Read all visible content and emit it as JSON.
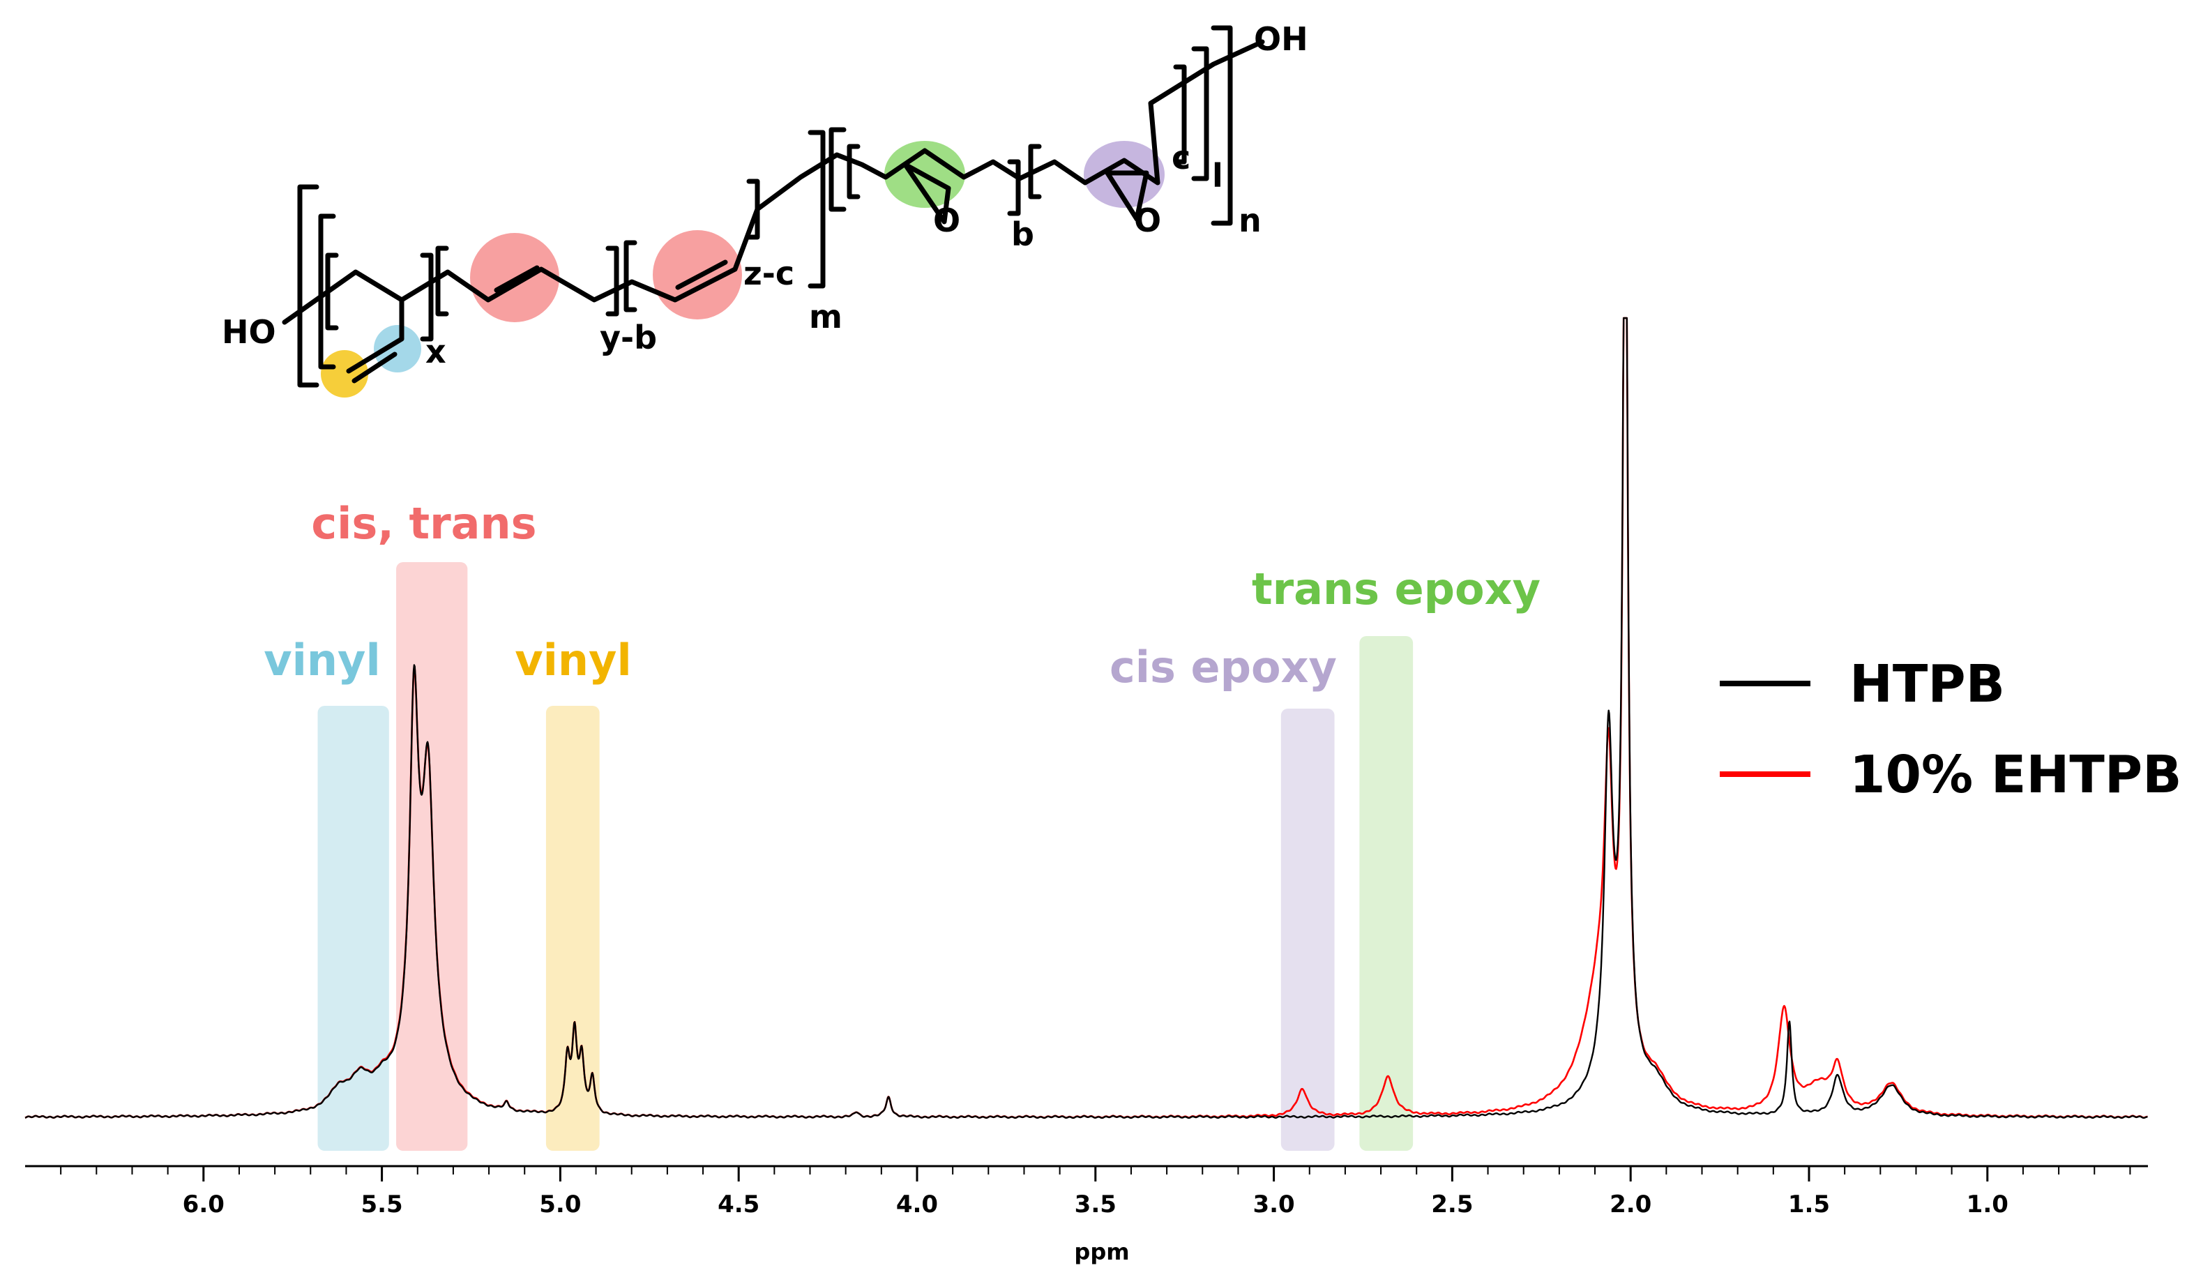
{
  "structure": {
    "labels": {
      "ho_left": "HO",
      "oh_right": "OH",
      "x": "x",
      "y_b": "y-b",
      "z_c": "z-c",
      "m": "m",
      "b": "b",
      "c": "c",
      "l": "l",
      "n": "n",
      "o1": "O",
      "o2": "O"
    },
    "highlight_colors": {
      "vinyl_end": "#f5c518",
      "vinyl_ch": "#7ec8df",
      "alkene": "#f48080",
      "trans_epoxide": "#7fd35c",
      "cis_epoxide": "#b39ed4"
    }
  },
  "chart_data": {
    "type": "line",
    "title": "",
    "xlabel": "ppm",
    "ylabel": "",
    "xlim": [
      6.5,
      0.55
    ],
    "x_reversed": true,
    "xticks": [
      6.0,
      5.5,
      5.0,
      4.5,
      4.0,
      3.5,
      3.0,
      2.5,
      2.0,
      1.5,
      1.0
    ],
    "xtick_labels": [
      "6.0",
      "5.5",
      "5.0",
      "4.5",
      "4.0",
      "3.5",
      "3.0",
      "2.5",
      "2.0",
      "1.5",
      "1.0"
    ],
    "grid": false,
    "legend_position": "right",
    "legend": [
      {
        "name": "HTPB",
        "color": "#000000"
      },
      {
        "name": "10% EHTPB",
        "color": "#ff0000"
      }
    ],
    "peaks": {
      "HTPB": [
        {
          "ppm": 5.62,
          "height": 0.05,
          "width": 0.035
        },
        {
          "ppm": 5.56,
          "height": 0.07,
          "width": 0.035
        },
        {
          "ppm": 5.5,
          "height": 0.04,
          "width": 0.03
        },
        {
          "ppm": 5.41,
          "height": 0.8,
          "width": 0.014
        },
        {
          "ppm": 5.37,
          "height": 0.62,
          "width": 0.018
        },
        {
          "ppm": 5.39,
          "height": 0.28,
          "width": 0.05
        },
        {
          "ppm": 5.15,
          "height": 0.02,
          "width": 0.008
        },
        {
          "ppm": 4.98,
          "height": 0.14,
          "width": 0.008
        },
        {
          "ppm": 4.96,
          "height": 0.2,
          "width": 0.008
        },
        {
          "ppm": 4.94,
          "height": 0.14,
          "width": 0.008
        },
        {
          "ppm": 4.91,
          "height": 0.09,
          "width": 0.008
        },
        {
          "ppm": 4.08,
          "height": 0.05,
          "width": 0.009
        },
        {
          "ppm": 4.17,
          "height": 0.012,
          "width": 0.008
        },
        {
          "ppm": 2.062,
          "height": 0.78,
          "width": 0.013
        },
        {
          "ppm": 2.015,
          "height": 2.5,
          "width": 0.008
        },
        {
          "ppm": 2.04,
          "height": 0.22,
          "width": 0.05
        },
        {
          "ppm": 1.93,
          "height": 0.06,
          "width": 0.04
        },
        {
          "ppm": 1.555,
          "height": 0.24,
          "width": 0.008
        },
        {
          "ppm": 1.42,
          "height": 0.1,
          "width": 0.018
        },
        {
          "ppm": 1.27,
          "height": 0.08,
          "width": 0.035
        }
      ],
      "10% EHTPB": [
        {
          "ppm": 5.62,
          "height": 0.05,
          "width": 0.035
        },
        {
          "ppm": 5.56,
          "height": 0.07,
          "width": 0.035
        },
        {
          "ppm": 5.5,
          "height": 0.04,
          "width": 0.03
        },
        {
          "ppm": 5.41,
          "height": 0.78,
          "width": 0.014
        },
        {
          "ppm": 5.37,
          "height": 0.6,
          "width": 0.018
        },
        {
          "ppm": 5.39,
          "height": 0.3,
          "width": 0.05
        },
        {
          "ppm": 5.15,
          "height": 0.02,
          "width": 0.008
        },
        {
          "ppm": 4.98,
          "height": 0.14,
          "width": 0.008
        },
        {
          "ppm": 4.96,
          "height": 0.2,
          "width": 0.008
        },
        {
          "ppm": 4.94,
          "height": 0.14,
          "width": 0.008
        },
        {
          "ppm": 4.91,
          "height": 0.09,
          "width": 0.008
        },
        {
          "ppm": 4.08,
          "height": 0.05,
          "width": 0.009
        },
        {
          "ppm": 4.17,
          "height": 0.012,
          "width": 0.008
        },
        {
          "ppm": 2.92,
          "height": 0.07,
          "width": 0.018
        },
        {
          "ppm": 2.68,
          "height": 0.1,
          "width": 0.02
        },
        {
          "ppm": 2.062,
          "height": 0.6,
          "width": 0.013
        },
        {
          "ppm": 2.015,
          "height": 2.5,
          "width": 0.008
        },
        {
          "ppm": 2.08,
          "height": 0.35,
          "width": 0.06
        },
        {
          "ppm": 1.93,
          "height": 0.06,
          "width": 0.04
        },
        {
          "ppm": 1.57,
          "height": 0.26,
          "width": 0.02
        },
        {
          "ppm": 1.47,
          "height": 0.07,
          "width": 0.05
        },
        {
          "ppm": 1.42,
          "height": 0.1,
          "width": 0.018
        },
        {
          "ppm": 1.27,
          "height": 0.08,
          "width": 0.035
        }
      ]
    },
    "highlight_bands": [
      {
        "label": "vinyl",
        "x_from": 5.68,
        "x_to": 5.48,
        "color": "#c6e6ee",
        "text_color": "#79c7dc"
      },
      {
        "label": "cis, trans",
        "x_from": 5.46,
        "x_to": 5.26,
        "color": "#fbc5c5",
        "text_color": "#f16b6b"
      },
      {
        "label": "vinyl",
        "x_from": 5.04,
        "x_to": 4.89,
        "color": "#fbe5a8",
        "text_color": "#f2b400"
      },
      {
        "label": "cis epoxy",
        "x_from": 2.98,
        "x_to": 2.83,
        "color": "#dcd6ea",
        "text_color": "#b5a6cf"
      },
      {
        "label": "trans epoxy",
        "x_from": 2.76,
        "x_to": 2.61,
        "color": "#d3eec6",
        "text_color": "#6cc449"
      }
    ]
  }
}
